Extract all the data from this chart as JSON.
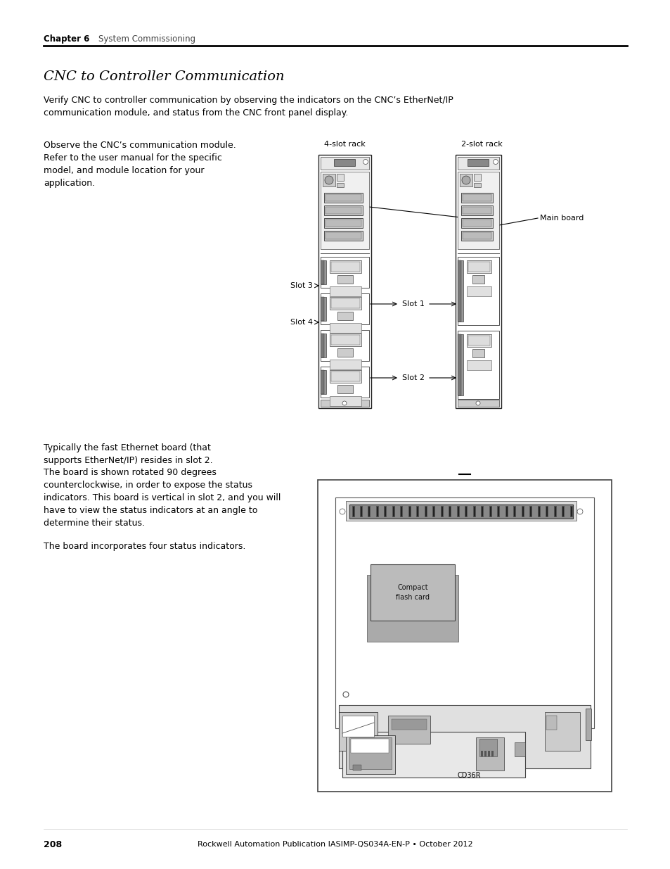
{
  "page_background": "#ffffff",
  "chapter_label": "Chapter 6",
  "chapter_title": "System Commissioning",
  "section_title": "CNC to Controller Communication",
  "body_text_1": "Verify CNC to controller communication by observing the indicators on the CNC’s EtherNet/IP\ncommunication module, and status from the CNC front panel display.",
  "left_text_block_1a": "Observe the CNC’s communication module.",
  "left_text_block_1b": "Refer to the user manual for the specific\nmodel, and module location for your\napplication.",
  "left_text_block_2a": "Typically the fast Ethernet board (that\nsupports EtherNet/IP) resides in slot 2.",
  "left_text_block_2b": "The board is shown rotated 90 degrees\ncounterclockwise, in order to expose the status\nindicators. This board is vertical in slot 2, and you will\nhave to view the status indicators at an angle to\ndetermine their status.",
  "left_text_block_2c": "The board incorporates four status indicators.",
  "footer_page": "208",
  "footer_center": "Rockwell Automation Publication IASIMP-QS034A-EN-P • October 2012",
  "diagram1_label_left": "4-slot rack",
  "diagram1_label_right": "2-slot rack",
  "diagram1_slot3": "Slot 3",
  "diagram1_slot4": "Slot 4",
  "diagram1_slot1": "Slot 1",
  "diagram1_slot2": "Slot 2",
  "diagram1_mainboard": "Main board",
  "diagram2_cf_label": "Compact\nflash card",
  "diagram2_cd": "CD36R"
}
